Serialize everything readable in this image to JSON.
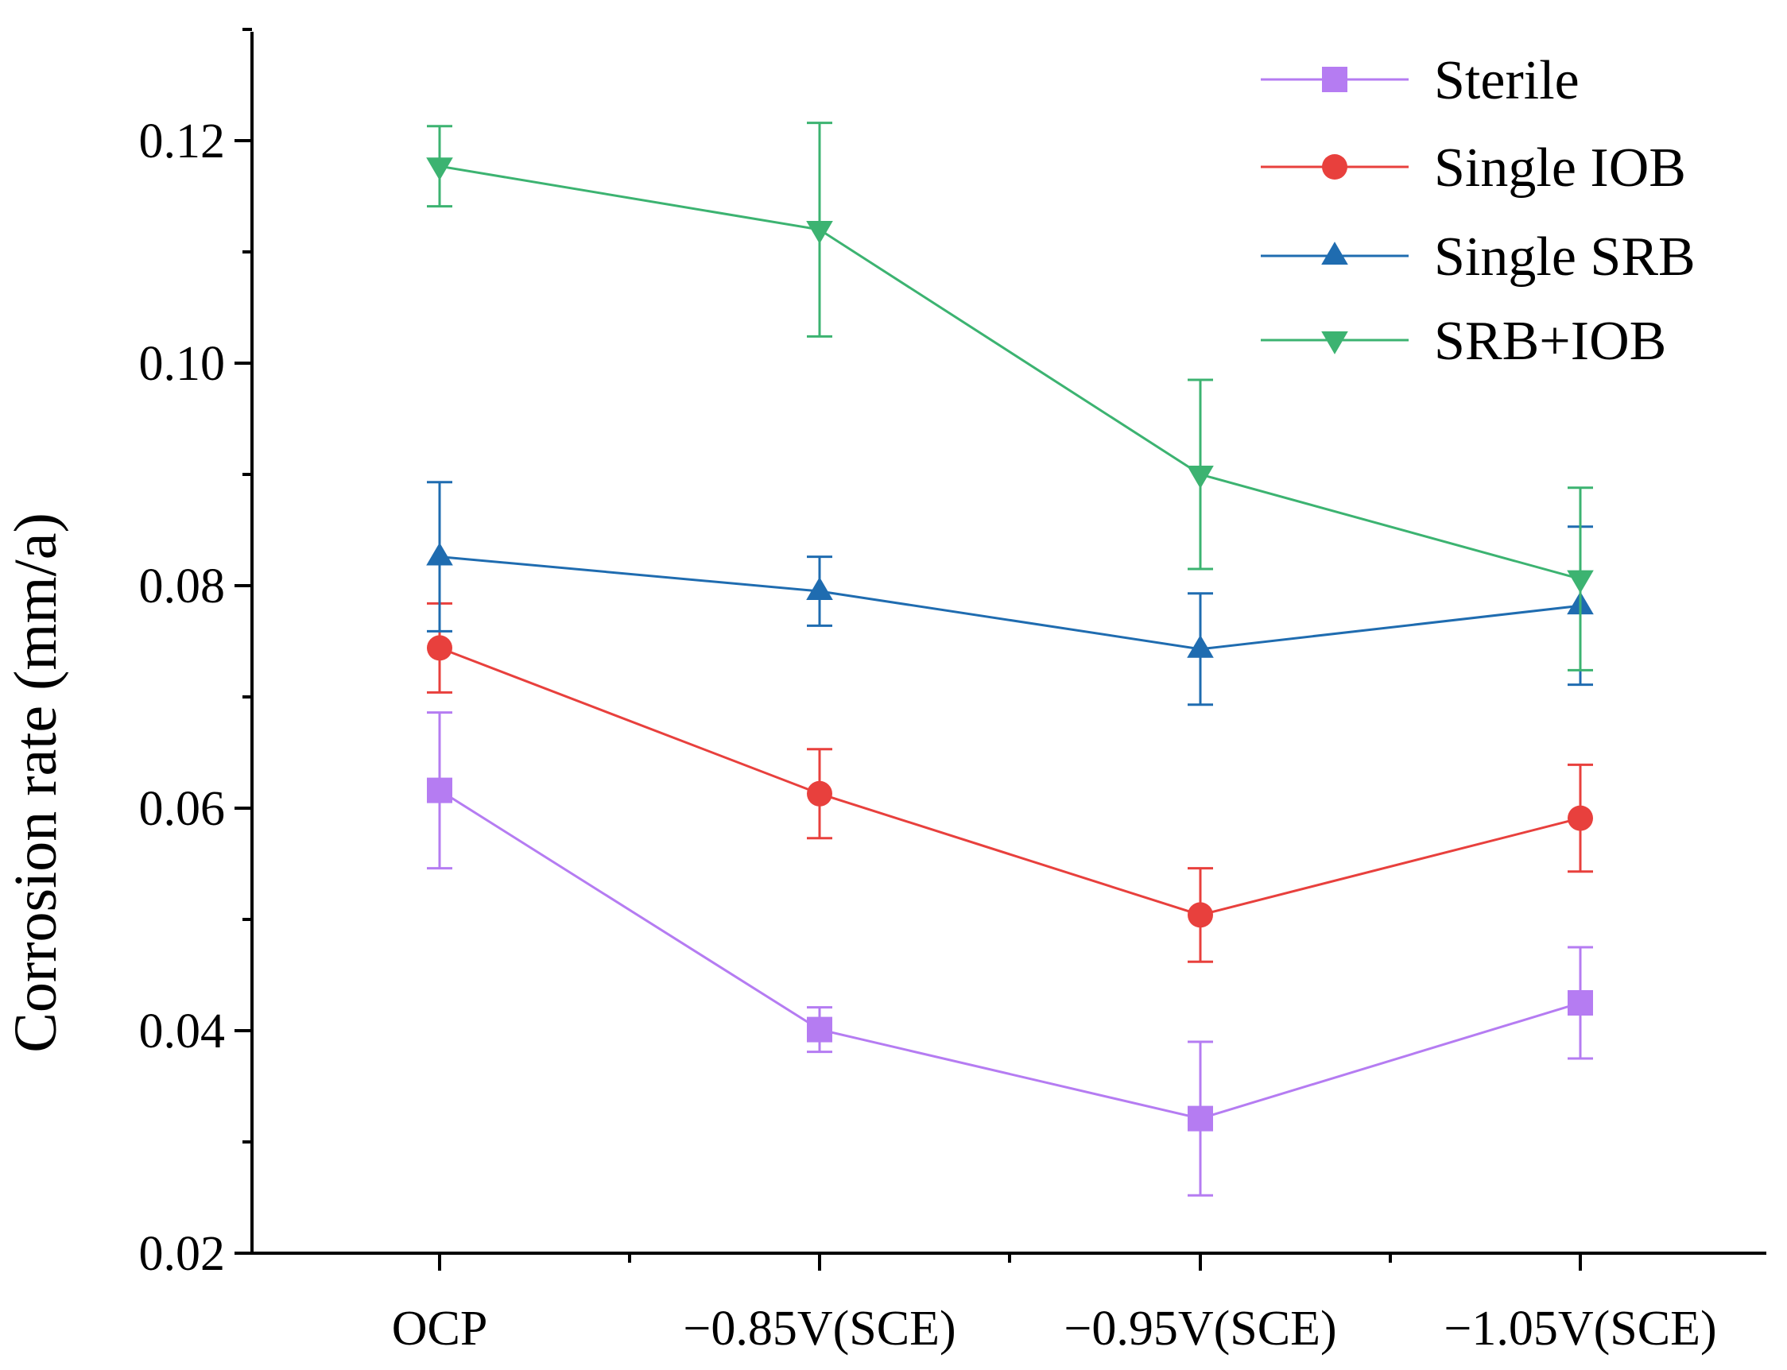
{
  "chart_data": {
    "type": "line",
    "title": "",
    "xlabel": "",
    "ylabel": "Corrosion rate (mm/a)",
    "categories": [
      "OCP",
      "−0.85V(SCE)",
      "−0.95V(SCE)",
      "−1.05V(SCE)"
    ],
    "ylim": [
      0.02,
      0.13
    ],
    "yticks": [
      0.02,
      0.04,
      0.06,
      0.08,
      0.1,
      0.12
    ],
    "ytick_labels": [
      "0.02",
      "0.04",
      "0.06",
      "0.08",
      "0.10",
      "0.12"
    ],
    "grid": false,
    "legend_position": "top-right",
    "series": [
      {
        "name": "Sterile",
        "color": "#b57cf2",
        "marker": "square",
        "values": [
          0.0616,
          0.0401,
          0.0321,
          0.0425
        ],
        "errors": [
          0.007,
          0.002,
          0.0069,
          0.005
        ]
      },
      {
        "name": "Single IOB",
        "color": "#e8403d",
        "marker": "circle",
        "values": [
          0.0744,
          0.0613,
          0.0504,
          0.0591
        ],
        "errors": [
          0.004,
          0.004,
          0.0042,
          0.0048
        ]
      },
      {
        "name": "Single SRB",
        "color": "#1f6cb0",
        "marker": "triangle-up",
        "values": [
          0.0826,
          0.0795,
          0.0743,
          0.0782
        ],
        "errors": [
          0.0067,
          0.0031,
          0.005,
          0.0071
        ]
      },
      {
        "name": "SRB+IOB",
        "color": "#3cb371",
        "marker": "triangle-down",
        "values": [
          0.1177,
          0.112,
          0.09,
          0.0806
        ],
        "errors": [
          0.0036,
          0.0096,
          0.0085,
          0.0082
        ]
      }
    ]
  }
}
